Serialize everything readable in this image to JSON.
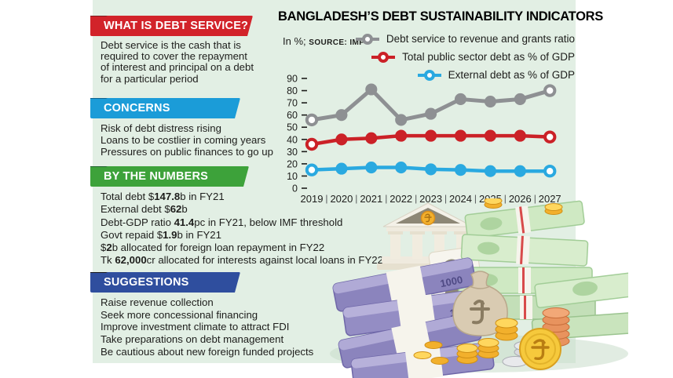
{
  "page": {
    "background": "#ffffff",
    "panel_background": "#e2efe4",
    "text_color": "#1d1d1b"
  },
  "sections": [
    {
      "id": "what-is-debt-service",
      "title": "WHAT IS DEBT SERVICE?",
      "color": "#d2232a",
      "fold_color": "#7e1a1e",
      "lines": [
        [
          {
            "t": "Debt service is the cash that is"
          }
        ],
        [
          {
            "t": "required to cover the repayment"
          }
        ],
        [
          {
            "t": "of interest and principal on a debt"
          }
        ],
        [
          {
            "t": "for a particular period"
          }
        ]
      ]
    },
    {
      "id": "concerns",
      "title": "CONCERNS",
      "color": "#1b9cd8",
      "fold_color": "#0f648f",
      "lines": [
        [
          {
            "t": "Risk of debt distress rising"
          }
        ],
        [
          {
            "t": "Loans to be costlier in coming years"
          }
        ],
        [
          {
            "t": "Pressures on public finances to go up"
          }
        ]
      ]
    },
    {
      "id": "by-the-numbers",
      "title": "BY THE NUMBERS",
      "color": "#3da23a",
      "fold_color": "#1d632b",
      "lines": [
        [
          {
            "t": "Total debt $"
          },
          {
            "t": "147.8",
            "b": true
          },
          {
            "t": "b in FY21"
          }
        ],
        [
          {
            "t": "External debt $"
          },
          {
            "t": "62",
            "b": true
          },
          {
            "t": "b"
          }
        ],
        [
          {
            "t": "Debt-GDP ratio "
          },
          {
            "t": "41.4",
            "b": true
          },
          {
            "t": "pc in FY21, below IMF threshold"
          }
        ],
        [
          {
            "t": "Govt repaid $"
          },
          {
            "t": "1.9",
            "b": true
          },
          {
            "t": "b in FY21"
          }
        ],
        [
          {
            "t": "$"
          },
          {
            "t": "2",
            "b": true
          },
          {
            "t": "b allocated for foreign loan repayment in FY22"
          }
        ],
        [
          {
            "t": "Tk "
          },
          {
            "t": "62,000",
            "b": true
          },
          {
            "t": "cr allocated for interests against local loans in FY22"
          }
        ]
      ]
    },
    {
      "id": "suggestions",
      "title": "SUGGESTIONS",
      "color": "#2f4e9e",
      "fold_color": "#15161c",
      "lines": [
        [
          {
            "t": "Raise revenue collection"
          }
        ],
        [
          {
            "t": "Seek more concessional financing"
          }
        ],
        [
          {
            "t": "Improve investment climate to attract FDI"
          }
        ],
        [
          {
            "t": "Take preparations on debt management"
          }
        ],
        [
          {
            "t": "Be cautious about new foreign funded projects"
          }
        ]
      ]
    }
  ],
  "chart_data": {
    "type": "line",
    "title": "BANGLADESH’S DEBT SUSTAINABILITY INDICATORS",
    "subtitle_unit": "In %;",
    "source": "SOURCE: IMF",
    "x": [
      2019,
      2020,
      2021,
      2022,
      2023,
      2024,
      2025,
      2026,
      2027
    ],
    "ylim": [
      0,
      90
    ],
    "ytick_step": 10,
    "grid": false,
    "legend_position": "top-right",
    "marker_style": "endpoints-open",
    "series": [
      {
        "name": "Debt service to revenue and grants ratio",
        "color": "#8e9093",
        "values": [
          56,
          60,
          81,
          56,
          61,
          73,
          71,
          73,
          80
        ]
      },
      {
        "name": "Total public sector debt as % of GDP",
        "color": "#cb2127",
        "values": [
          36,
          40,
          41,
          43,
          43,
          43,
          43,
          43,
          42
        ]
      },
      {
        "name": "External debt as % of GDP",
        "color": "#2aa9e0",
        "values": [
          15,
          16,
          17,
          17,
          15.5,
          15,
          14,
          14,
          14
        ]
      }
    ]
  },
  "illustration": {
    "elements": [
      "bank-building-icon",
      "taka-coin-pediment-icon",
      "taka-symbol-card-icon",
      "taka-banknote-bundles-icon",
      "dollar-bundle-stack-icon",
      "money-sack-icon",
      "gold-coin-stacks-icon",
      "silver-coin-stack-icon",
      "copper-coin-stack-icon",
      "large-gold-taka-coin-icon"
    ]
  }
}
